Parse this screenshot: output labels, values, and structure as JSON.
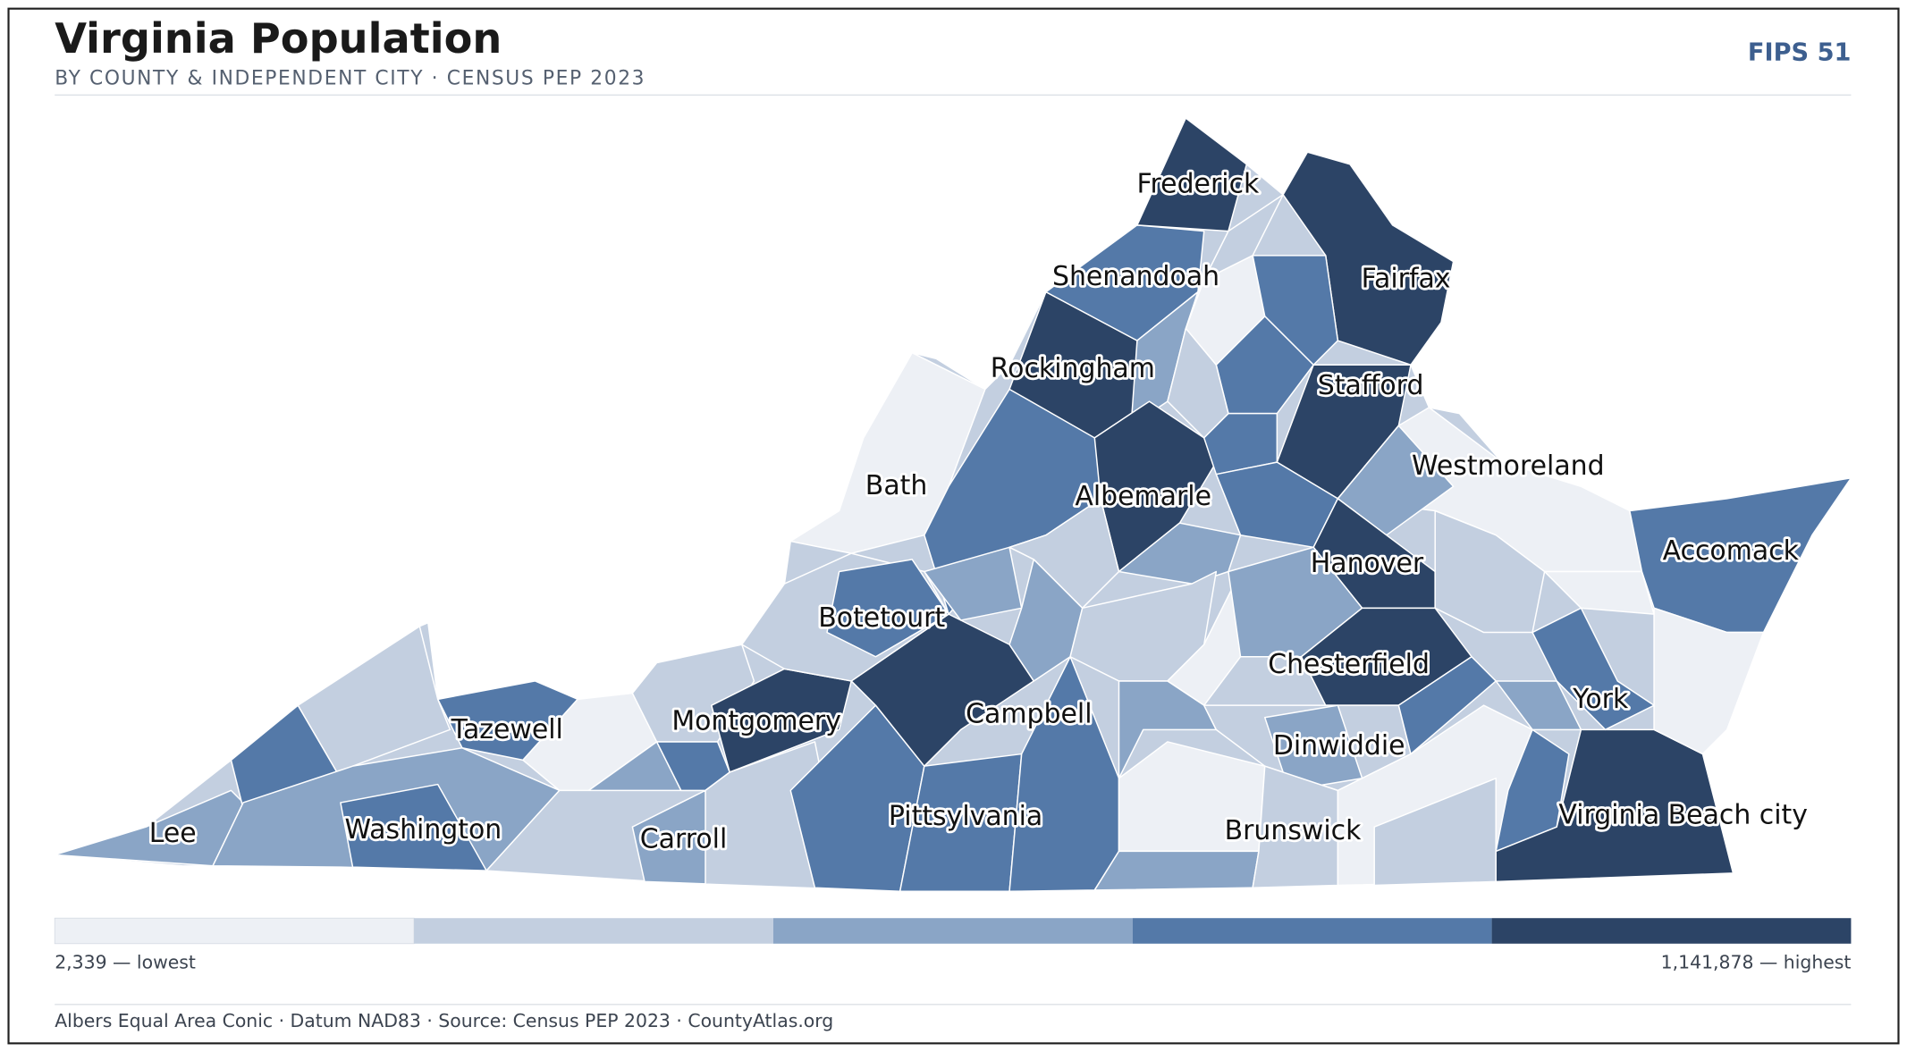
{
  "header": {
    "title": "Virginia Population",
    "subtitle": "BY COUNTY & INDEPENDENT CITY · CENSUS PEP 2023",
    "badge": "FIPS 51"
  },
  "map": {
    "labels": [
      "Frederick",
      "Shenandoah",
      "Fairfax",
      "Rockingham",
      "Stafford",
      "Westmoreland",
      "Bath",
      "Albemarle",
      "Accomack",
      "Hanover",
      "Botetourt",
      "Chesterfield",
      "York",
      "Tazewell",
      "Montgomery",
      "Campbell",
      "Dinwiddie",
      "Lee",
      "Washington",
      "Carroll",
      "Pittsylvania",
      "Brunswick",
      "Virginia Beach city"
    ]
  },
  "legend": {
    "low": "2,339 — lowest",
    "high": "1,141,878 — highest"
  },
  "footer": "Albers Equal Area Conic · Datum NAD83 · Source: Census PEP 2023 · CountyAtlas.org"
}
